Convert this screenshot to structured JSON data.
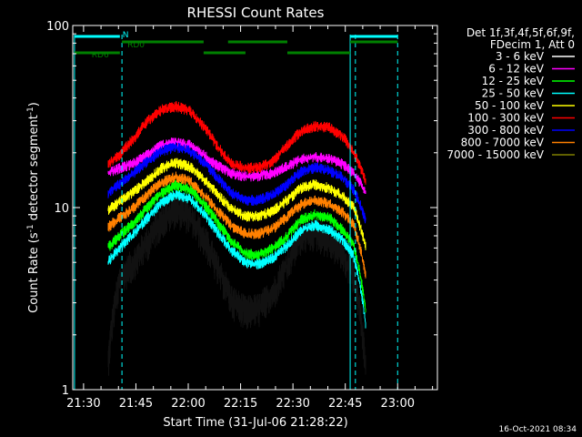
{
  "chart_data": {
    "type": "line",
    "title": "RHESSI Count Rates",
    "xlabel": "Start Time (31-Jul-06 21:28:22)",
    "ylabel_main": "Count Rate (s",
    "ylabel_sup1": "-1",
    "ylabel_mid": " detector segment",
    "ylabel_sup2": "-1",
    "ylabel_end": ")",
    "yscale": "log",
    "ylim": [
      1,
      100
    ],
    "xlim_minutes_after_2128": [
      -1.5,
      103
    ],
    "x_ticks": [
      {
        "label": "21:30",
        "t": 1.6
      },
      {
        "label": "21:45",
        "t": 16.6
      },
      {
        "label": "22:00",
        "t": 31.6
      },
      {
        "label": "22:15",
        "t": 46.6
      },
      {
        "label": "22:30",
        "t": 61.6
      },
      {
        "label": "22:45",
        "t": 76.6
      },
      {
        "label": "23:00",
        "t": 91.6
      }
    ],
    "y_ticks": [
      {
        "label": "1",
        "v": 1
      },
      {
        "label": "10",
        "v": 10
      },
      {
        "label": "100",
        "v": 100
      }
    ],
    "timestamp": "16-Oct-2021 08:34",
    "legend": {
      "header1": "Det 1f,3f,4f,5f,6f,9f,",
      "header2": "FDecim 1, Att 0",
      "entries": [
        {
          "label": "3 - 6 keV",
          "color": "#ffffff"
        },
        {
          "label": "6 - 12 keV",
          "color": "#ff00ff"
        },
        {
          "label": "12 - 25 keV",
          "color": "#00ff00"
        },
        {
          "label": "25 - 50 keV",
          "color": "#00ffff"
        },
        {
          "label": "50 - 100 keV",
          "color": "#ffff00"
        },
        {
          "label": "100 - 300 keV",
          "color": "#ff0000"
        },
        {
          "label": "300 - 800 keV",
          "color": "#0000ff"
        },
        {
          "label": "800 - 7000 keV",
          "color": "#ff8000"
        },
        {
          "label": "7000 - 15000 keV",
          "color": "#808000"
        }
      ]
    },
    "series": [
      {
        "name": "3 - 6 keV",
        "color": "#111111",
        "start": 8.5,
        "end": 82.5,
        "x": [
          8.5,
          12,
          16,
          20,
          24,
          28,
          32,
          36,
          40,
          44,
          48,
          52,
          56,
          60,
          64,
          68,
          72,
          76,
          79,
          82.5
        ],
        "y": [
          1.3,
          4.0,
          5.0,
          6.5,
          8.5,
          9.8,
          9.0,
          6.8,
          4.6,
          3.1,
          2.7,
          2.8,
          3.4,
          4.8,
          7.0,
          7.3,
          6.6,
          5.5,
          4.2,
          1.2
        ]
      },
      {
        "name": "6 - 12 keV",
        "color": "#ff00ff",
        "start": 8.5,
        "end": 82.5,
        "x": [
          8.5,
          12,
          16,
          20,
          24,
          28,
          32,
          36,
          40,
          44,
          48,
          52,
          56,
          60,
          64,
          68,
          72,
          76,
          79,
          82.5
        ],
        "y": [
          15.5,
          16.5,
          17.5,
          19.5,
          22.0,
          23.0,
          22.0,
          19.5,
          17.0,
          15.5,
          14.8,
          15.0,
          15.5,
          16.8,
          18.5,
          19.0,
          18.5,
          17.3,
          15.5,
          12.0
        ]
      },
      {
        "name": "12 - 25 keV",
        "color": "#00ff00",
        "start": 8.5,
        "end": 82.5,
        "x": [
          8.5,
          12,
          16,
          20,
          24,
          28,
          32,
          36,
          40,
          44,
          48,
          52,
          56,
          60,
          64,
          68,
          72,
          76,
          79,
          82.5
        ],
        "y": [
          6.0,
          7.0,
          8.3,
          10.0,
          12.0,
          13.3,
          12.6,
          10.5,
          8.3,
          6.5,
          5.6,
          5.5,
          6.0,
          7.0,
          8.6,
          9.2,
          8.8,
          7.5,
          6.2,
          2.6
        ]
      },
      {
        "name": "25 - 50 keV",
        "color": "#00ffff",
        "start": 8.5,
        "end": 82.5,
        "x": [
          8.5,
          12,
          16,
          20,
          24,
          28,
          32,
          36,
          40,
          44,
          48,
          52,
          56,
          60,
          64,
          68,
          72,
          76,
          79,
          82.5
        ],
        "y": [
          5.0,
          6.0,
          7.2,
          8.8,
          10.6,
          11.8,
          11.2,
          9.3,
          7.3,
          5.8,
          5.0,
          4.9,
          5.3,
          6.2,
          7.5,
          8.0,
          7.6,
          6.6,
          5.4,
          2.2
        ]
      },
      {
        "name": "50 - 100 keV",
        "color": "#ffff00",
        "start": 8.5,
        "end": 82.5,
        "x": [
          8.5,
          12,
          16,
          20,
          24,
          28,
          32,
          36,
          40,
          44,
          48,
          52,
          56,
          60,
          64,
          68,
          72,
          76,
          79,
          82.5
        ],
        "y": [
          9.6,
          10.8,
          12.2,
          14.2,
          16.5,
          17.7,
          16.8,
          14.3,
          11.8,
          9.8,
          9.0,
          9.0,
          9.6,
          11.0,
          12.8,
          13.4,
          12.8,
          11.5,
          10.0,
          6.0
        ]
      },
      {
        "name": "100 - 300 keV",
        "color": "#ff0000",
        "start": 8.5,
        "end": 82.5,
        "x": [
          8.5,
          12,
          16,
          20,
          24,
          28,
          32,
          36,
          40,
          44,
          48,
          52,
          56,
          60,
          64,
          68,
          72,
          76,
          79,
          82.5
        ],
        "y": [
          17.5,
          19.5,
          24.0,
          30.0,
          34.5,
          36.0,
          34.0,
          28.0,
          21.5,
          17.5,
          16.5,
          16.6,
          18.0,
          22.0,
          26.5,
          28.0,
          27.5,
          24.5,
          20.0,
          14.0
        ]
      },
      {
        "name": "300 - 800 keV",
        "color": "#0000ff",
        "start": 8.5,
        "end": 82.5,
        "x": [
          8.5,
          12,
          16,
          20,
          24,
          28,
          32,
          36,
          40,
          44,
          48,
          52,
          56,
          60,
          64,
          68,
          72,
          76,
          79,
          82.5
        ],
        "y": [
          12.0,
          13.5,
          15.5,
          18.0,
          20.5,
          21.5,
          20.5,
          17.8,
          14.5,
          12.0,
          11.0,
          11.0,
          11.8,
          13.5,
          15.8,
          16.6,
          16.0,
          14.5,
          12.5,
          8.5
        ]
      },
      {
        "name": "800 - 7000 keV",
        "color": "#ff8000",
        "start": 8.5,
        "end": 82.5,
        "x": [
          8.5,
          12,
          16,
          20,
          24,
          28,
          32,
          36,
          40,
          44,
          48,
          52,
          56,
          60,
          64,
          68,
          72,
          76,
          79,
          82.5
        ],
        "y": [
          7.8,
          8.8,
          10.0,
          11.8,
          13.8,
          14.8,
          14.0,
          11.8,
          9.6,
          7.9,
          7.2,
          7.2,
          7.7,
          8.9,
          10.4,
          11.0,
          10.5,
          9.4,
          8.0,
          4.2
        ]
      },
      {
        "name": "7000 - 15000 keV",
        "color": "#808000",
        "start": 8.5,
        "end": 82.5,
        "x": [
          8.5,
          82.5
        ],
        "y": [
          null,
          null
        ]
      }
    ],
    "attenuator_lines": {
      "color": "#00ffff",
      "solid_at": [
        -1.0,
        78.0
      ],
      "dashed_at": [
        12.6,
        79.5,
        91.6
      ]
    },
    "flag_bars": [
      {
        "label": "N",
        "color": "#00ffff",
        "y_frac": 0.03,
        "spans": [
          [
            -1.0,
            12.0
          ],
          [
            78.0,
            91.6
          ]
        ]
      },
      {
        "label": "RD0",
        "color": "#008000",
        "y_frac": 0.045,
        "spans": [
          [
            12.6,
            36.0
          ],
          [
            43.0,
            60.0
          ],
          [
            78.0,
            91.6
          ]
        ]
      },
      {
        "label": "RD6",
        "color": "#008000",
        "y_frac": 0.075,
        "spans": [
          [
            -1.0,
            12.0
          ],
          [
            36.0,
            48.0
          ],
          [
            60.0,
            78.0
          ]
        ]
      }
    ]
  }
}
